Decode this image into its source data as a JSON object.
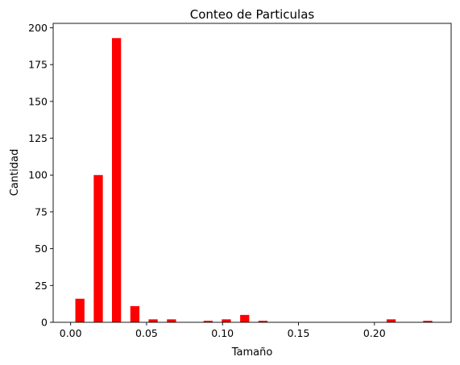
{
  "chart_data": {
    "type": "bar",
    "title": "Conteo de Particulas",
    "xlabel": "Tamaño",
    "ylabel": "Cantidad",
    "bar_color": "#ff0000",
    "xlim": [
      -0.0115,
      0.2505
    ],
    "ylim": [
      0,
      203
    ],
    "bar_width": 0.006,
    "xticks": [
      {
        "value": 0.0,
        "label": "0.00"
      },
      {
        "value": 0.05,
        "label": "0.05"
      },
      {
        "value": 0.1,
        "label": "0.10"
      },
      {
        "value": 0.15,
        "label": "0.15"
      },
      {
        "value": 0.2,
        "label": "0.20"
      }
    ],
    "yticks": [
      {
        "value": 0,
        "label": "0"
      },
      {
        "value": 25,
        "label": "25"
      },
      {
        "value": 50,
        "label": "50"
      },
      {
        "value": 75,
        "label": "75"
      },
      {
        "value": 100,
        "label": "100"
      },
      {
        "value": 125,
        "label": "125"
      },
      {
        "value": 150,
        "label": "150"
      },
      {
        "value": 175,
        "label": "175"
      },
      {
        "value": 200,
        "label": "200"
      }
    ],
    "bars": [
      {
        "x": 0.0061,
        "value": 16
      },
      {
        "x": 0.0182,
        "value": 100
      },
      {
        "x": 0.0302,
        "value": 193
      },
      {
        "x": 0.0423,
        "value": 11
      },
      {
        "x": 0.0543,
        "value": 2
      },
      {
        "x": 0.0664,
        "value": 2
      },
      {
        "x": 0.0784,
        "value": 0
      },
      {
        "x": 0.0905,
        "value": 1
      },
      {
        "x": 0.1025,
        "value": 2
      },
      {
        "x": 0.1146,
        "value": 5
      },
      {
        "x": 0.1266,
        "value": 1
      },
      {
        "x": 0.1387,
        "value": 0
      },
      {
        "x": 0.1507,
        "value": 0
      },
      {
        "x": 0.1628,
        "value": 0
      },
      {
        "x": 0.1748,
        "value": 0
      },
      {
        "x": 0.1869,
        "value": 0
      },
      {
        "x": 0.1989,
        "value": 0
      },
      {
        "x": 0.211,
        "value": 2
      },
      {
        "x": 0.223,
        "value": 0
      },
      {
        "x": 0.2351,
        "value": 1
      }
    ]
  }
}
